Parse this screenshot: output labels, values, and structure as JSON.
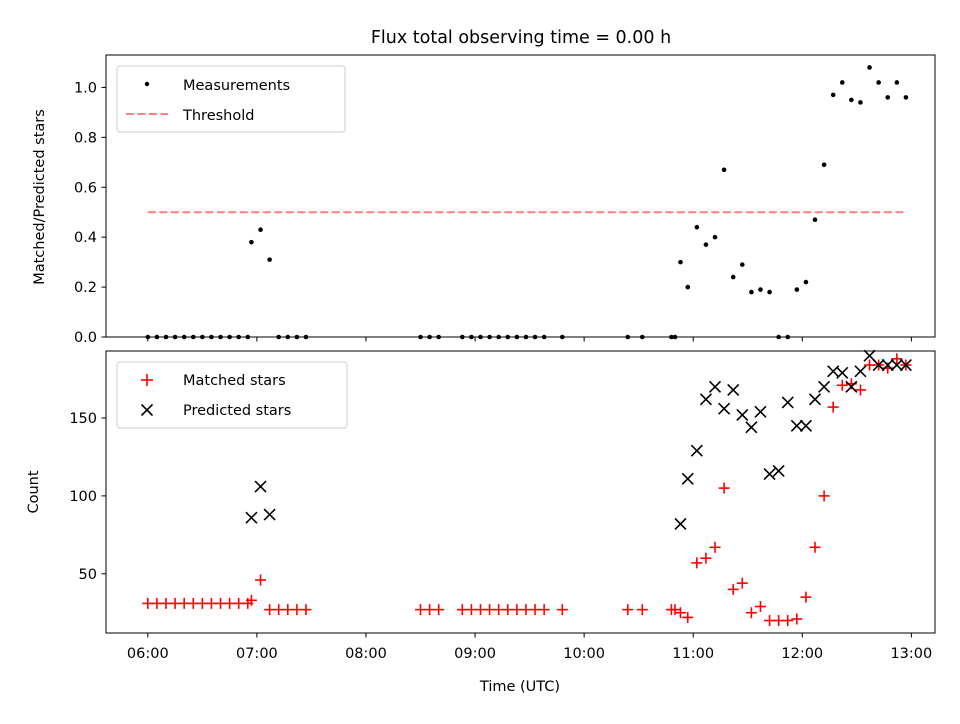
{
  "chart_data": [
    {
      "type": "scatter",
      "title": "Flux total observing time = 0.00 h",
      "xlabel": "",
      "ylabel": "Matched/Predicted stars",
      "ylim": [
        0,
        1.13
      ],
      "yticks": [
        "0.0",
        "0.2",
        "0.4",
        "0.6",
        "0.8",
        "1.0"
      ],
      "ytick_values": [
        0,
        0.2,
        0.4,
        0.6,
        0.8,
        1.0
      ],
      "legend_position": "top-left",
      "legend": [
        "Measurements",
        "Threshold"
      ],
      "series": [
        {
          "name": "Measurements",
          "color": "#000000",
          "marker": "dot",
          "x": [
            "06:00",
            "06:05",
            "06:10",
            "06:15",
            "06:20",
            "06:25",
            "06:30",
            "06:35",
            "06:40",
            "06:45",
            "06:50",
            "06:55",
            "06:57",
            "07:02",
            "07:07",
            "07:12",
            "07:17",
            "07:22",
            "07:27",
            "08:30",
            "08:35",
            "08:40",
            "08:53",
            "08:58",
            "09:03",
            "09:08",
            "09:13",
            "09:18",
            "09:23",
            "09:28",
            "09:33",
            "09:38",
            "09:48",
            "10:24",
            "10:32",
            "10:48",
            "10:50",
            "10:53",
            "10:57",
            "11:02",
            "11:07",
            "11:12",
            "11:17",
            "11:22",
            "11:27",
            "11:32",
            "11:37",
            "11:42",
            "11:47",
            "11:52",
            "11:57",
            "12:02",
            "12:07",
            "12:12",
            "12:17",
            "12:22",
            "12:27",
            "12:32",
            "12:37",
            "12:42",
            "12:47",
            "12:52",
            "12:57"
          ],
          "y": [
            0,
            0,
            0,
            0,
            0,
            0,
            0,
            0,
            0,
            0,
            0,
            0,
            0.38,
            0.43,
            0.31,
            0,
            0,
            0,
            0,
            0,
            0,
            0,
            0,
            0,
            0,
            0,
            0,
            0,
            0,
            0,
            0,
            0,
            0,
            0,
            0,
            0,
            0,
            0.3,
            0.2,
            0.44,
            0.37,
            0.4,
            0.67,
            0.24,
            0.29,
            0.18,
            0.19,
            0.18,
            0,
            0,
            0.19,
            0.22,
            0.47,
            0.69,
            0.97,
            1.02,
            0.95,
            0.94,
            1.08,
            1.02,
            0.96,
            1.02,
            0.96
          ]
        },
        {
          "name": "Threshold",
          "color": "#ff7f7f",
          "style": "dashed",
          "x": [
            "06:00",
            "12:57"
          ],
          "y": [
            0.5,
            0.5
          ]
        }
      ]
    },
    {
      "type": "scatter",
      "title": "",
      "xlabel": "Time (UTC)",
      "ylabel": "Count",
      "ylim": [
        12,
        193
      ],
      "yticks": [
        "50",
        "100",
        "150"
      ],
      "ytick_values": [
        50,
        100,
        150
      ],
      "xlim": [
        "05:37",
        "13:13"
      ],
      "xticks": [
        "06:00",
        "07:00",
        "08:00",
        "09:00",
        "10:00",
        "11:00",
        "12:00",
        "13:00"
      ],
      "legend_position": "top-left",
      "legend": [
        "Matched stars",
        "Predicted stars"
      ],
      "series": [
        {
          "name": "Matched stars",
          "color": "#ff0000",
          "marker": "plus",
          "x": [
            "06:00",
            "06:05",
            "06:10",
            "06:15",
            "06:20",
            "06:25",
            "06:30",
            "06:35",
            "06:40",
            "06:45",
            "06:50",
            "06:55",
            "06:57",
            "07:02",
            "07:07",
            "07:12",
            "07:17",
            "07:22",
            "07:27",
            "08:30",
            "08:35",
            "08:40",
            "08:53",
            "08:58",
            "09:03",
            "09:08",
            "09:13",
            "09:18",
            "09:23",
            "09:28",
            "09:33",
            "09:38",
            "09:48",
            "10:24",
            "10:32",
            "10:48",
            "10:50",
            "10:53",
            "10:57",
            "11:02",
            "11:07",
            "11:12",
            "11:17",
            "11:22",
            "11:27",
            "11:32",
            "11:37",
            "11:42",
            "11:47",
            "11:52",
            "11:57",
            "12:02",
            "12:07",
            "12:12",
            "12:17",
            "12:22",
            "12:27",
            "12:32",
            "12:37",
            "12:42",
            "12:47",
            "12:52",
            "12:57"
          ],
          "y": [
            31,
            31,
            31,
            31,
            31,
            31,
            31,
            31,
            31,
            31,
            31,
            31,
            33,
            46,
            27,
            27,
            27,
            27,
            27,
            27,
            27,
            27,
            27,
            27,
            27,
            27,
            27,
            27,
            27,
            27,
            27,
            27,
            27,
            27,
            27,
            27,
            27,
            25,
            22,
            57,
            60,
            67,
            105,
            40,
            44,
            25,
            29,
            20,
            20,
            20,
            21,
            35,
            67,
            100,
            157,
            171,
            172,
            168,
            184,
            184,
            182,
            188,
            184
          ]
        },
        {
          "name": "Predicted stars",
          "color": "#000000",
          "marker": "x",
          "x": [
            "06:57",
            "07:02",
            "07:07",
            "10:53",
            "10:57",
            "11:02",
            "11:07",
            "11:12",
            "11:17",
            "11:22",
            "11:27",
            "11:32",
            "11:37",
            "11:42",
            "11:47",
            "11:52",
            "11:57",
            "12:02",
            "12:07",
            "12:12",
            "12:17",
            "12:22",
            "12:27",
            "12:32",
            "12:37",
            "12:42",
            "12:47",
            "12:52",
            "12:57"
          ],
          "y": [
            86,
            106,
            88,
            82,
            111,
            129,
            162,
            170,
            156,
            168,
            152,
            144,
            154,
            114,
            116,
            160,
            145,
            145,
            162,
            170,
            180,
            179,
            170,
            180,
            190,
            184,
            184,
            184,
            184
          ]
        }
      ]
    }
  ]
}
